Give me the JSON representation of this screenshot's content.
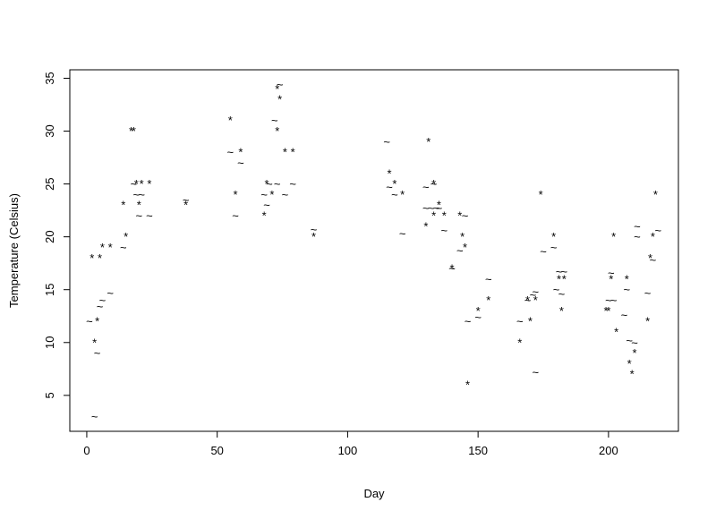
{
  "chart_data": {
    "type": "scatter",
    "x_label": "Day",
    "y_label": "Temperature (Celsius)",
    "xlim": [
      -6.5,
      226.8
    ],
    "ylim": [
      1.6,
      35.8
    ],
    "xticks": [
      0,
      50,
      100,
      150,
      200
    ],
    "yticks": [
      5,
      10,
      15,
      20,
      25,
      30,
      35
    ],
    "series": [
      {
        "marker": "*",
        "color": "#000000",
        "x": [
          2,
          3,
          4,
          5,
          6,
          9,
          14,
          15,
          17,
          18,
          19,
          21,
          24,
          20,
          38,
          55,
          57,
          59,
          68,
          69,
          71,
          73,
          73,
          74,
          76,
          79,
          87,
          116,
          118,
          121,
          130,
          131,
          133,
          133,
          135,
          137,
          140,
          143,
          144,
          145,
          146,
          150,
          154,
          166,
          169,
          170,
          172,
          174,
          179,
          181,
          182,
          183,
          199,
          200,
          201,
          202,
          203,
          207,
          208,
          209,
          210,
          215,
          216,
          217,
          218
        ],
        "values": [
          18,
          10,
          12,
          18,
          19,
          19,
          23,
          20,
          30,
          30,
          25,
          25,
          25,
          23,
          23,
          31,
          24,
          28,
          22,
          25,
          24,
          34,
          30,
          33,
          28,
          28,
          20,
          26,
          25,
          24,
          21,
          29,
          25,
          22,
          23,
          22,
          17,
          22,
          20,
          19,
          6,
          13,
          14,
          10,
          14,
          12,
          14,
          24,
          20,
          16,
          13,
          16,
          13,
          13,
          16,
          20,
          11,
          16,
          8,
          7,
          9,
          12,
          18,
          20,
          24
        ]
      },
      {
        "marker": "~",
        "color": "#000000",
        "x": [
          1,
          3,
          4,
          5,
          6,
          9,
          14,
          18,
          19,
          21,
          20,
          24,
          38,
          55,
          57,
          59,
          68,
          69,
          70,
          72,
          73,
          74,
          76,
          79,
          87,
          115,
          116,
          118,
          121,
          130,
          130,
          132,
          134,
          133,
          135,
          137,
          140,
          143,
          145,
          146,
          150,
          154,
          166,
          169,
          171,
          172,
          172,
          175,
          179,
          180,
          182,
          181,
          183,
          200,
          201,
          202,
          206,
          207,
          208,
          210,
          211,
          211,
          215,
          217,
          219
        ],
        "values": [
          12,
          3,
          9,
          13.4,
          14,
          14.7,
          19,
          25,
          24,
          24,
          22,
          22,
          23.5,
          28,
          22,
          27,
          24,
          23,
          25,
          31,
          25,
          34.4,
          24,
          25,
          20.7,
          29,
          24.7,
          24,
          20.3,
          24.7,
          22.7,
          22.7,
          22.7,
          25,
          22.7,
          20.6,
          17,
          18.7,
          22,
          12,
          12.4,
          16,
          12,
          14,
          14.5,
          7.2,
          14.8,
          18.6,
          19,
          15,
          14.6,
          16.7,
          16.7,
          14,
          16.6,
          14,
          12.6,
          15,
          10.2,
          10,
          21,
          20,
          14.7,
          17.8,
          20.6
        ]
      }
    ]
  }
}
